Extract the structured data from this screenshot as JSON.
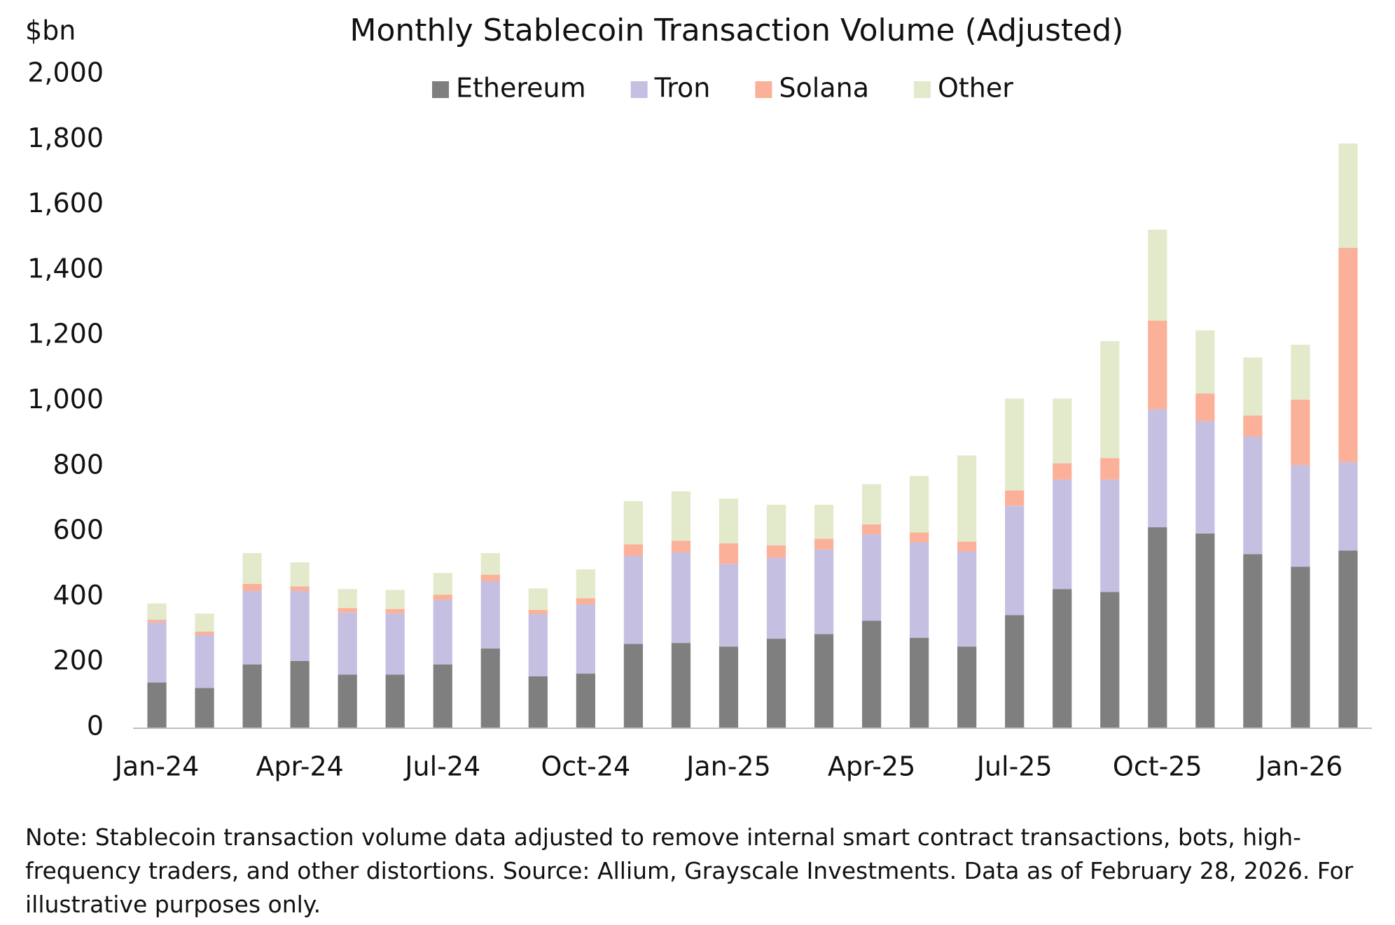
{
  "chart_data": {
    "type": "stacked_bar",
    "title": "Monthly Stablecoin Transaction Volume (Adjusted)",
    "y_label": "$bn",
    "note": "Note: Stablecoin transaction volume data adjusted to remove internal smart contract transactions, bots, high-frequency traders, and other distortions. Source: Allium, Grayscale Investments. Data as of February 28, 2026. For illustrative purposes only.",
    "categories": [
      "Jan-24",
      null,
      null,
      "Apr-24",
      null,
      null,
      "Jul-24",
      null,
      null,
      "Oct-24",
      null,
      null,
      "Jan-25",
      null,
      null,
      "Apr-25",
      null,
      null,
      "Jul-25",
      null,
      null,
      "Oct-25",
      null,
      null,
      "Jan-26",
      null
    ],
    "series": [
      {
        "name": "Ethereum",
        "color": "#7f7f7f",
        "values": [
          138,
          121,
          193,
          204,
          162,
          162,
          193,
          242,
          157,
          165,
          256,
          259,
          248,
          272,
          286,
          327,
          275,
          248,
          344,
          424,
          415,
          613,
          594,
          531,
          492,
          542
        ]
      },
      {
        "name": "Tron",
        "color": "#c5bfe2",
        "values": [
          184,
          162,
          225,
          214,
          190,
          187,
          198,
          206,
          190,
          212,
          269,
          277,
          253,
          248,
          259,
          264,
          292,
          291,
          335,
          335,
          344,
          361,
          344,
          360,
          311,
          270
        ]
      },
      {
        "name": "Solana",
        "color": "#fbb199",
        "values": [
          8,
          11,
          22,
          14,
          14,
          14,
          16,
          20,
          13,
          19,
          36,
          36,
          63,
          38,
          33,
          31,
          30,
          30,
          47,
          50,
          66,
          272,
          85,
          64,
          201,
          657
        ]
      },
      {
        "name": "Other",
        "color": "#e2eacb",
        "values": [
          50,
          55,
          94,
          74,
          58,
          58,
          66,
          66,
          66,
          88,
          132,
          151,
          137,
          124,
          104,
          123,
          173,
          264,
          281,
          198,
          358,
          278,
          193,
          178,
          168,
          319
        ]
      }
    ],
    "ylim": [
      0,
      2000
    ],
    "yticks": [
      0,
      200,
      400,
      600,
      800,
      {
        "value": 1000,
        "label": "1,000"
      },
      {
        "value": 1200,
        "label": "1,200"
      },
      {
        "value": 1400,
        "label": "1,400"
      },
      {
        "value": 1600,
        "label": "1,600"
      },
      {
        "value": 1800,
        "label": "1,800"
      },
      {
        "value": 2000,
        "label": "2,000"
      }
    ],
    "grid": false,
    "legend": "top"
  }
}
